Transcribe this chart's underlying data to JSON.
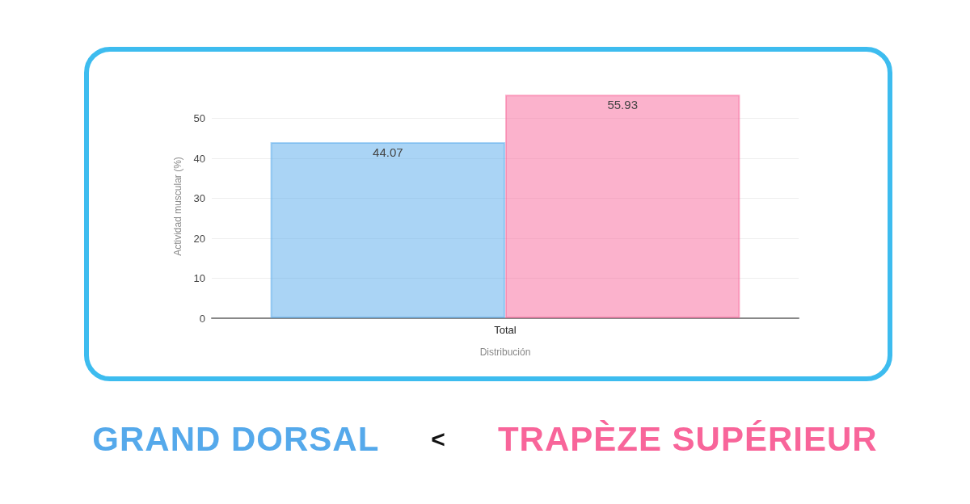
{
  "chart_data": {
    "type": "bar",
    "categories": [
      "Total"
    ],
    "xlabel": "Distribución",
    "ylabel": "Actividad muscular (%)",
    "series": [
      {
        "name": "GRAND DORSAL",
        "color": "#55a9eb",
        "values": [
          44.07
        ]
      },
      {
        "name": "TRAPÈZE SUPÉRIEUR",
        "color": "#f8659a",
        "values": [
          55.93
        ]
      }
    ],
    "ylim": [
      0,
      56
    ],
    "yticks": [
      0,
      10,
      20,
      30,
      40,
      50
    ],
    "grid": "y",
    "data_labels": true,
    "legend": "bottom",
    "annotations": [
      "<"
    ]
  }
}
